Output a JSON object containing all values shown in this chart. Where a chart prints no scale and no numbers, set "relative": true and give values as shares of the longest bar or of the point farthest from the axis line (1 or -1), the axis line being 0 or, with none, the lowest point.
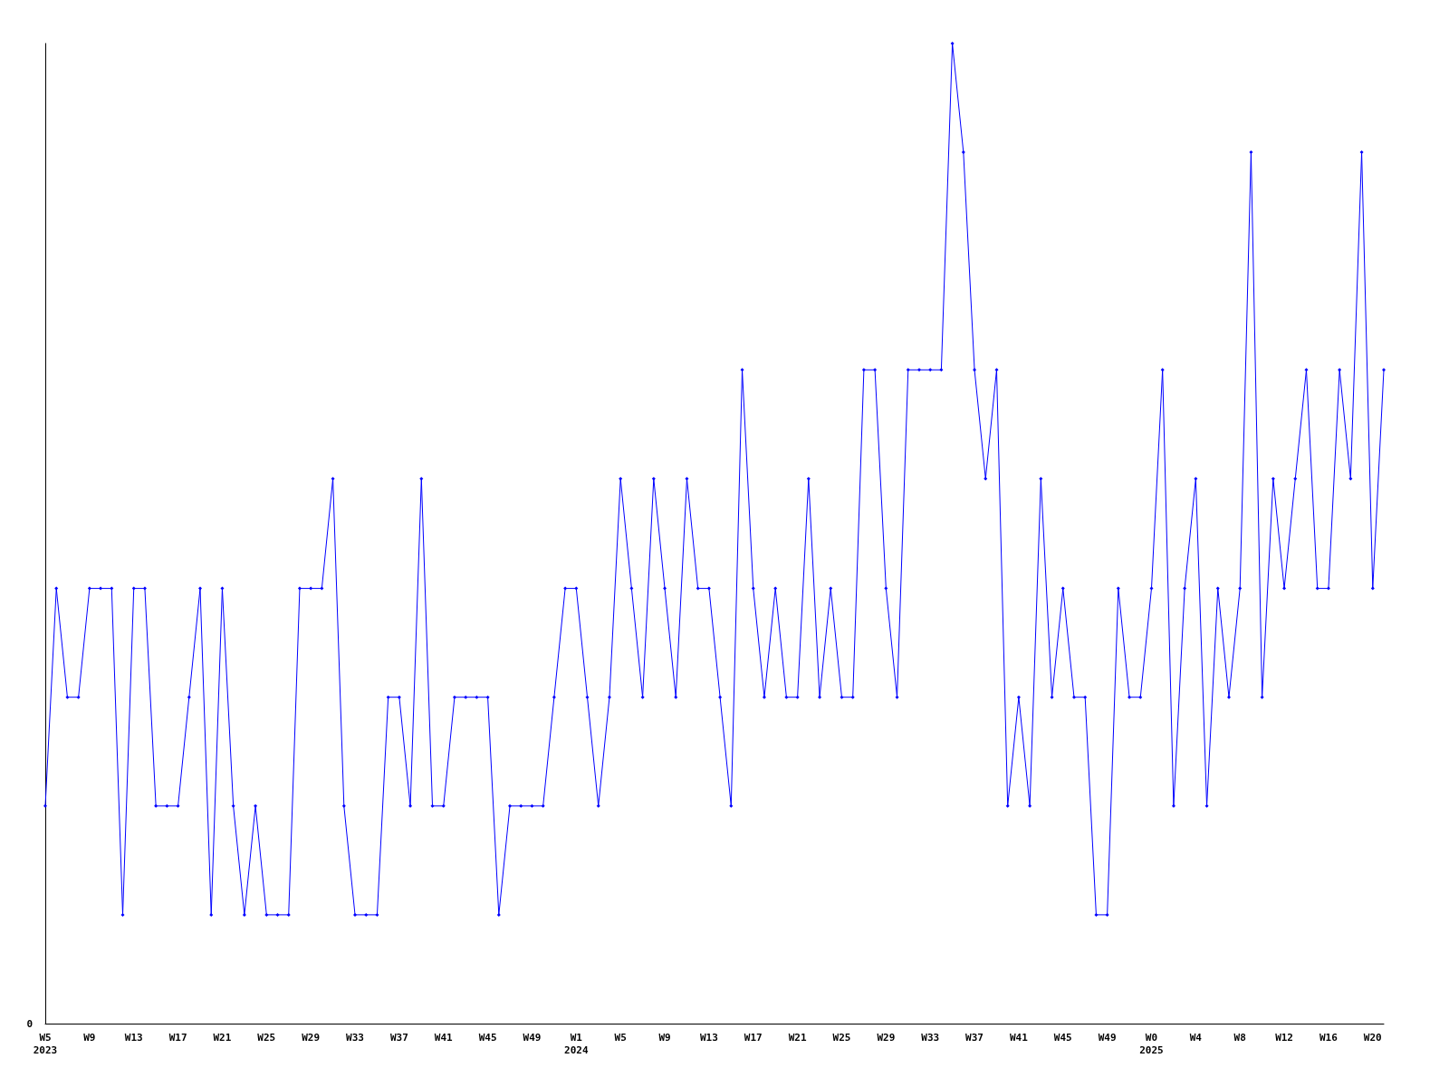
{
  "chart_data": {
    "type": "line",
    "relative": true,
    "annotations": [
      "0"
    ],
    "marker": "diamond",
    "line_style": "solid",
    "grid": false,
    "categories": [
      "W5\n2023",
      null,
      null,
      null,
      "W9",
      null,
      null,
      null,
      "W13",
      null,
      null,
      null,
      "W17",
      null,
      null,
      null,
      "W21",
      null,
      null,
      null,
      "W25",
      null,
      null,
      null,
      "W29",
      null,
      null,
      null,
      "W33",
      null,
      null,
      null,
      "W37",
      null,
      null,
      null,
      "W41",
      null,
      null,
      null,
      "W45",
      null,
      null,
      null,
      "W49",
      null,
      null,
      null,
      "W1\n2024",
      null,
      null,
      null,
      "W5",
      null,
      null,
      null,
      "W9",
      null,
      null,
      null,
      "W13",
      null,
      null,
      null,
      "W17",
      null,
      null,
      null,
      "W21",
      null,
      null,
      null,
      "W25",
      null,
      null,
      null,
      "W29",
      null,
      null,
      null,
      "W33",
      null,
      null,
      null,
      "W37",
      null,
      null,
      null,
      "W41",
      null,
      null,
      null,
      "W45",
      null,
      null,
      null,
      "W49",
      null,
      null,
      null,
      "W0\n2025",
      null,
      null,
      null,
      "W4",
      null,
      null,
      null,
      "W8",
      null,
      null,
      null,
      "W12",
      null,
      null,
      null,
      "W16",
      null,
      null,
      null,
      "W20",
      null
    ],
    "series": [
      {
        "color": "#0000ff",
        "values": [
          0.222,
          0.444,
          0.333,
          0.333,
          0.444,
          0.444,
          0.444,
          0.111,
          0.444,
          0.444,
          0.222,
          0.222,
          0.222,
          0.333,
          0.444,
          0.111,
          0.444,
          0.222,
          0.111,
          0.222,
          0.111,
          0.111,
          0.111,
          0.444,
          0.444,
          0.444,
          0.556,
          0.222,
          0.111,
          0.111,
          0.111,
          0.333,
          0.333,
          0.222,
          0.556,
          0.222,
          0.222,
          0.333,
          0.333,
          0.333,
          0.333,
          0.111,
          0.222,
          0.222,
          0.222,
          0.222,
          0.333,
          0.444,
          0.444,
          0.333,
          0.222,
          0.333,
          0.556,
          0.444,
          0.333,
          0.556,
          0.444,
          0.333,
          0.556,
          0.444,
          0.444,
          0.333,
          0.222,
          0.667,
          0.444,
          0.333,
          0.444,
          0.333,
          0.333,
          0.556,
          0.333,
          0.444,
          0.333,
          0.333,
          0.667,
          0.667,
          0.444,
          0.333,
          0.667,
          0.667,
          0.667,
          0.667,
          1,
          0.889,
          0.667,
          0.556,
          0.667,
          0.222,
          0.333,
          0.222,
          0.556,
          0.333,
          0.444,
          0.333,
          0.333,
          0.111,
          0.111,
          0.444,
          0.333,
          0.333,
          0.444,
          0.667,
          0.222,
          0.444,
          0.556,
          0.222,
          0.444,
          0.333,
          0.444,
          0.889,
          0.333,
          0.556,
          0.444,
          0.556,
          0.667,
          0.444,
          0.444,
          0.667,
          0.556,
          0.889,
          0.444,
          0.667
        ]
      }
    ]
  }
}
